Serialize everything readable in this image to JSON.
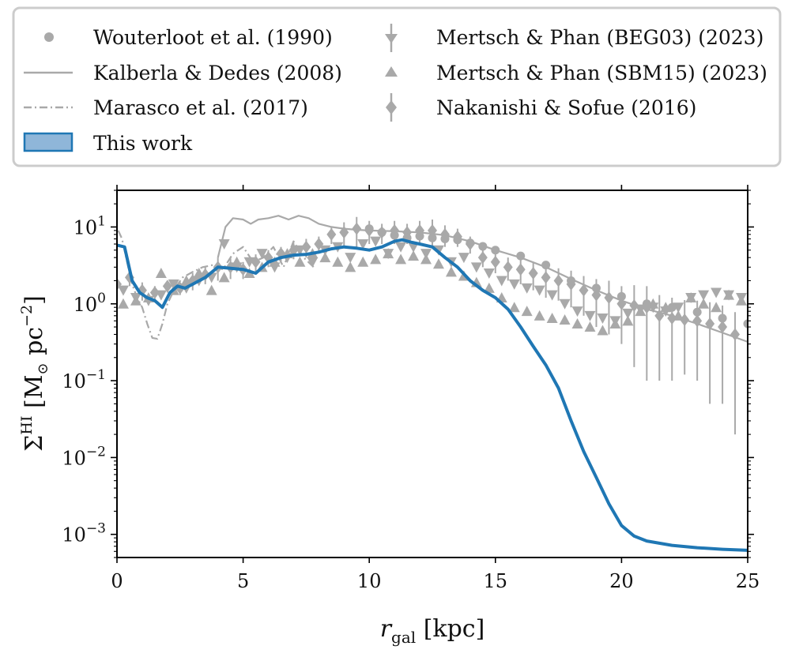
{
  "chart_data": {
    "type": "line",
    "xlabel": "r_gal [kpc]",
    "xlabel_main": "r",
    "xlabel_sub": "gal",
    "xlabel_units": " [kpc]",
    "ylabel": "Σ^HI [M_⊙ pc^-2]",
    "ylabel_sigma": "Σ",
    "ylabel_sup": "HI",
    "ylabel_unit_a": " [M",
    "ylabel_sun": "⊙",
    "ylabel_unit_b": " pc",
    "ylabel_exp": "−2",
    "ylabel_close": "]",
    "yscale": "log",
    "xlim": [
      0,
      25
    ],
    "ylim": [
      0.0005,
      30
    ],
    "xticks": [
      0,
      5,
      10,
      15,
      20,
      25
    ],
    "xtick_labels": [
      "0",
      "5",
      "10",
      "15",
      "20",
      "25"
    ],
    "yticks": [
      {
        "value": 0.001,
        "base": "10",
        "exp": "−3"
      },
      {
        "value": 0.01,
        "base": "10",
        "exp": "−2"
      },
      {
        "value": 0.1,
        "base": "10",
        "exp": "−1"
      },
      {
        "value": 1,
        "base": "10",
        "exp": "0"
      },
      {
        "value": 10,
        "base": "10",
        "exp": "1"
      }
    ],
    "legend_position": "top, outside plot",
    "series": [
      {
        "name": "Wouterloot et al. (1990)",
        "kind": "points",
        "marker": "circle",
        "color": "#a9a9a9",
        "x": [
          10,
          10.5,
          11,
          11.5,
          12,
          12.5,
          13,
          13.5,
          14,
          14.5,
          15,
          16,
          17,
          18,
          19,
          20,
          21,
          22,
          23,
          24,
          25
        ],
        "y": [
          9.5,
          8.5,
          7.8,
          7.2,
          7.6,
          7.2,
          7.0,
          6.8,
          6.2,
          5.6,
          5.0,
          4.2,
          3.2,
          2.0,
          1.6,
          1.25,
          1.0,
          0.9,
          0.78,
          0.65,
          0.55
        ]
      },
      {
        "name": "Kalberla & Dedes (2008)",
        "kind": "line",
        "style": "solid",
        "color": "#a9a9a9",
        "x": [
          4,
          4.3,
          4.6,
          5,
          5.3,
          5.6,
          6,
          6.4,
          6.8,
          7.2,
          7.6,
          8,
          8.5,
          9,
          9.5,
          10,
          11,
          12,
          13,
          14,
          15,
          16,
          17,
          18,
          19,
          20,
          21,
          22,
          23,
          24,
          25
        ],
        "y": [
          4.0,
          10.0,
          13.0,
          12.5,
          11.0,
          12.5,
          13.0,
          14.0,
          12.5,
          14.0,
          13.0,
          11.0,
          10.0,
          9.5,
          9.2,
          9.0,
          8.8,
          8.5,
          7.8,
          6.5,
          5.0,
          4.0,
          3.0,
          2.1,
          1.5,
          1.1,
          0.85,
          0.7,
          0.55,
          0.42,
          0.32
        ]
      },
      {
        "name": "Marasco et al. (2017)",
        "kind": "line",
        "style": "dashdot",
        "color": "#a9a9a9",
        "x": [
          0.05,
          0.2,
          0.4,
          0.6,
          0.8,
          1.0,
          1.2,
          1.4,
          1.6,
          1.8,
          2.0,
          2.3,
          2.6,
          3.0,
          3.4,
          3.8,
          4.2,
          4.6,
          5.0,
          5.4,
          5.8,
          6.2,
          6.6,
          7.0,
          7.4,
          7.8
        ],
        "y": [
          9.0,
          7.0,
          3.5,
          1.8,
          1.2,
          0.9,
          0.55,
          0.36,
          0.35,
          0.55,
          1.0,
          1.6,
          2.2,
          2.6,
          3.0,
          3.2,
          2.8,
          4.5,
          5.5,
          3.5,
          4.0,
          5.5,
          3.0,
          6.5,
          4.0,
          3.0
        ]
      },
      {
        "name": "This work",
        "kind": "line",
        "style": "solid",
        "color": "#1f77b4",
        "x": [
          0,
          0.3,
          0.6,
          0.9,
          1.2,
          1.5,
          1.8,
          2.1,
          2.4,
          2.7,
          3.0,
          3.5,
          4.0,
          4.5,
          5.0,
          5.5,
          6.0,
          6.5,
          7.0,
          7.5,
          8.0,
          8.5,
          9.0,
          9.5,
          10.0,
          10.5,
          11.0,
          11.3,
          11.7,
          12.0,
          12.5,
          13.0,
          13.5,
          14.0,
          14.5,
          15.0,
          15.5,
          16.0,
          16.5,
          17.0,
          17.5,
          18.0,
          18.5,
          19.0,
          19.5,
          20.0,
          20.5,
          21.0,
          22.0,
          23.0,
          24.0,
          25.0
        ],
        "y": [
          5.8,
          5.5,
          2.0,
          1.4,
          1.2,
          1.1,
          0.9,
          1.4,
          1.7,
          1.6,
          1.8,
          2.2,
          3.0,
          2.9,
          2.8,
          2.5,
          3.5,
          4.0,
          4.3,
          4.4,
          4.7,
          5.2,
          5.5,
          5.3,
          5.0,
          5.5,
          6.5,
          6.8,
          6.3,
          6.0,
          5.5,
          4.0,
          3.0,
          2.0,
          1.5,
          1.2,
          0.85,
          0.5,
          0.28,
          0.16,
          0.08,
          0.03,
          0.012,
          0.0055,
          0.0025,
          0.0013,
          0.00095,
          0.00082,
          0.00072,
          0.00067,
          0.00064,
          0.00062
        ]
      },
      {
        "name": "Mertsch & Phan (BEG03) (2023)",
        "kind": "points",
        "marker": "triangle_down",
        "color": "#a9a9a9",
        "x": [
          0.25,
          0.75,
          1.25,
          1.75,
          2.25,
          2.75,
          3.25,
          3.75,
          4.25,
          4.75,
          5.25,
          5.75,
          6.25,
          6.75,
          7.25,
          7.75,
          8.25,
          8.75,
          9.25,
          9.75,
          10.25,
          10.75,
          11.25,
          11.75,
          12.25,
          12.75,
          13.25,
          13.75,
          14.25,
          14.75,
          15.25,
          15.75,
          16.25,
          16.75,
          17.25,
          17.75,
          18.25,
          18.75,
          19.25,
          19.75,
          20.25,
          20.75,
          21.25,
          21.75,
          22.25,
          22.75,
          23.25,
          23.75,
          24.25,
          24.75
        ],
        "y": [
          1.5,
          1.2,
          1.1,
          1.3,
          1.8,
          1.6,
          2.0,
          2.2,
          6.0,
          3.0,
          3.5,
          4.5,
          3.0,
          4.0,
          5.0,
          3.5,
          5.0,
          5.5,
          4.0,
          6.0,
          6.5,
          4.5,
          5.5,
          5.5,
          4.5,
          5.0,
          3.5,
          4.0,
          3.0,
          2.5,
          2.0,
          1.8,
          1.6,
          1.5,
          1.3,
          1.0,
          0.8,
          0.7,
          0.65,
          0.6,
          0.75,
          0.85,
          0.9,
          0.8,
          0.9,
          1.2,
          1.3,
          1.4,
          1.3,
          1.2
        ],
        "yerr": [
          0,
          0,
          0,
          0,
          0,
          0,
          0,
          0,
          0,
          0,
          0,
          0,
          0,
          0,
          0,
          0,
          0,
          0,
          0,
          0,
          0,
          0,
          0,
          0,
          0,
          0,
          0,
          0,
          0,
          0,
          0,
          0,
          0,
          0,
          0,
          0,
          0,
          0,
          0,
          0,
          0,
          0,
          0,
          0,
          0,
          0,
          0,
          0,
          0,
          0
        ]
      },
      {
        "name": "Mertsch & Phan (SBM15) (2023)",
        "kind": "points",
        "marker": "triangle_up",
        "color": "#a9a9a9",
        "x": [
          0.25,
          0.75,
          1.25,
          1.75,
          2.25,
          2.75,
          3.25,
          3.75,
          4.25,
          4.75,
          5.25,
          5.75,
          6.25,
          6.75,
          7.25,
          7.75,
          8.25,
          8.75,
          9.25,
          9.75,
          10.25,
          10.75,
          11.25,
          11.75,
          12.25,
          12.75,
          13.25,
          13.75,
          14.25,
          14.75,
          15.25,
          15.75,
          16.25,
          16.75,
          17.25,
          17.75,
          18.25,
          18.75,
          19.25,
          19.75,
          20.25,
          20.75,
          21.25,
          21.75,
          22.25,
          22.75,
          23.25,
          23.75,
          24.25,
          24.75
        ],
        "y": [
          1.0,
          1.1,
          1.2,
          2.5,
          1.5,
          2.0,
          2.5,
          1.5,
          2.2,
          3.5,
          2.5,
          3.0,
          3.5,
          4.5,
          3.5,
          4.5,
          4.0,
          3.5,
          3.0,
          3.5,
          3.8,
          4.5,
          3.8,
          4.2,
          3.8,
          3.3,
          2.6,
          2.3,
          1.9,
          1.6,
          1.2,
          0.9,
          0.8,
          0.7,
          0.65,
          0.62,
          0.55,
          0.5,
          0.45,
          0.55,
          0.6,
          0.8,
          1.0,
          0.9,
          0.7,
          1.2,
          1.0,
          0.9,
          1.3,
          1.1
        ],
        "yerr": [
          0,
          0,
          0,
          0,
          0,
          0,
          0,
          0,
          0,
          0,
          0,
          0,
          0,
          0,
          0,
          0,
          0,
          0,
          0,
          0,
          0,
          0,
          0,
          0,
          0,
          0,
          0,
          0,
          0,
          0,
          0,
          0,
          0,
          0,
          0,
          0,
          0,
          0,
          0,
          0,
          0,
          0,
          0,
          0,
          0,
          0,
          0,
          0,
          0,
          0
        ]
      },
      {
        "name": "Nakanishi & Sofue (2016)",
        "kind": "points",
        "marker": "diamond",
        "color": "#a9a9a9",
        "x": [
          0.0,
          0.5,
          1.0,
          1.5,
          2.0,
          2.5,
          3.0,
          3.5,
          4.0,
          4.5,
          5.0,
          5.5,
          6.0,
          6.5,
          7.0,
          7.5,
          8.0,
          8.5,
          9.0,
          9.5,
          10.0,
          10.5,
          11.0,
          11.5,
          12.0,
          12.5,
          13.0,
          13.5,
          14.0,
          14.5,
          15.0,
          15.5,
          16.0,
          16.5,
          17.0,
          17.5,
          18.0,
          18.5,
          19.0,
          19.5,
          20.0,
          20.5,
          21.0,
          21.5,
          22.0,
          22.5,
          23.0,
          23.5,
          24.0,
          24.5
        ],
        "y": [
          1.8,
          2.2,
          1.5,
          1.4,
          1.7,
          1.6,
          2.0,
          2.4,
          3.0,
          3.0,
          2.8,
          3.5,
          4.0,
          4.5,
          5.0,
          5.5,
          6.0,
          8.0,
          8.5,
          9.5,
          9.0,
          8.5,
          9.0,
          8.5,
          9.0,
          9.0,
          8.0,
          7.5,
          6.0,
          4.0,
          3.5,
          3.0,
          2.8,
          2.5,
          2.2,
          2.0,
          1.8,
          1.5,
          1.3,
          1.2,
          1.0,
          0.95,
          0.9,
          0.7,
          0.65,
          0.62,
          0.6,
          0.55,
          0.5,
          0.4
        ],
        "yerr": [
          0.6,
          0.5,
          0.4,
          0.3,
          0.3,
          0.3,
          0.5,
          0.6,
          1.0,
          0.9,
          0.7,
          0.9,
          1.0,
          1.0,
          1.2,
          1.5,
          1.5,
          2.0,
          3.0,
          4.0,
          3.0,
          2.5,
          3.0,
          2.5,
          3.0,
          3.5,
          2.5,
          2.0,
          1.5,
          1.0,
          1.0,
          1.0,
          1.0,
          1.0,
          1.0,
          0.9,
          0.9,
          0.8,
          0.8,
          0.8,
          0.7,
          0.8,
          0.8,
          0.6,
          0.55,
          0.5,
          0.5,
          0.5,
          0.45,
          0.38
        ]
      }
    ]
  }
}
